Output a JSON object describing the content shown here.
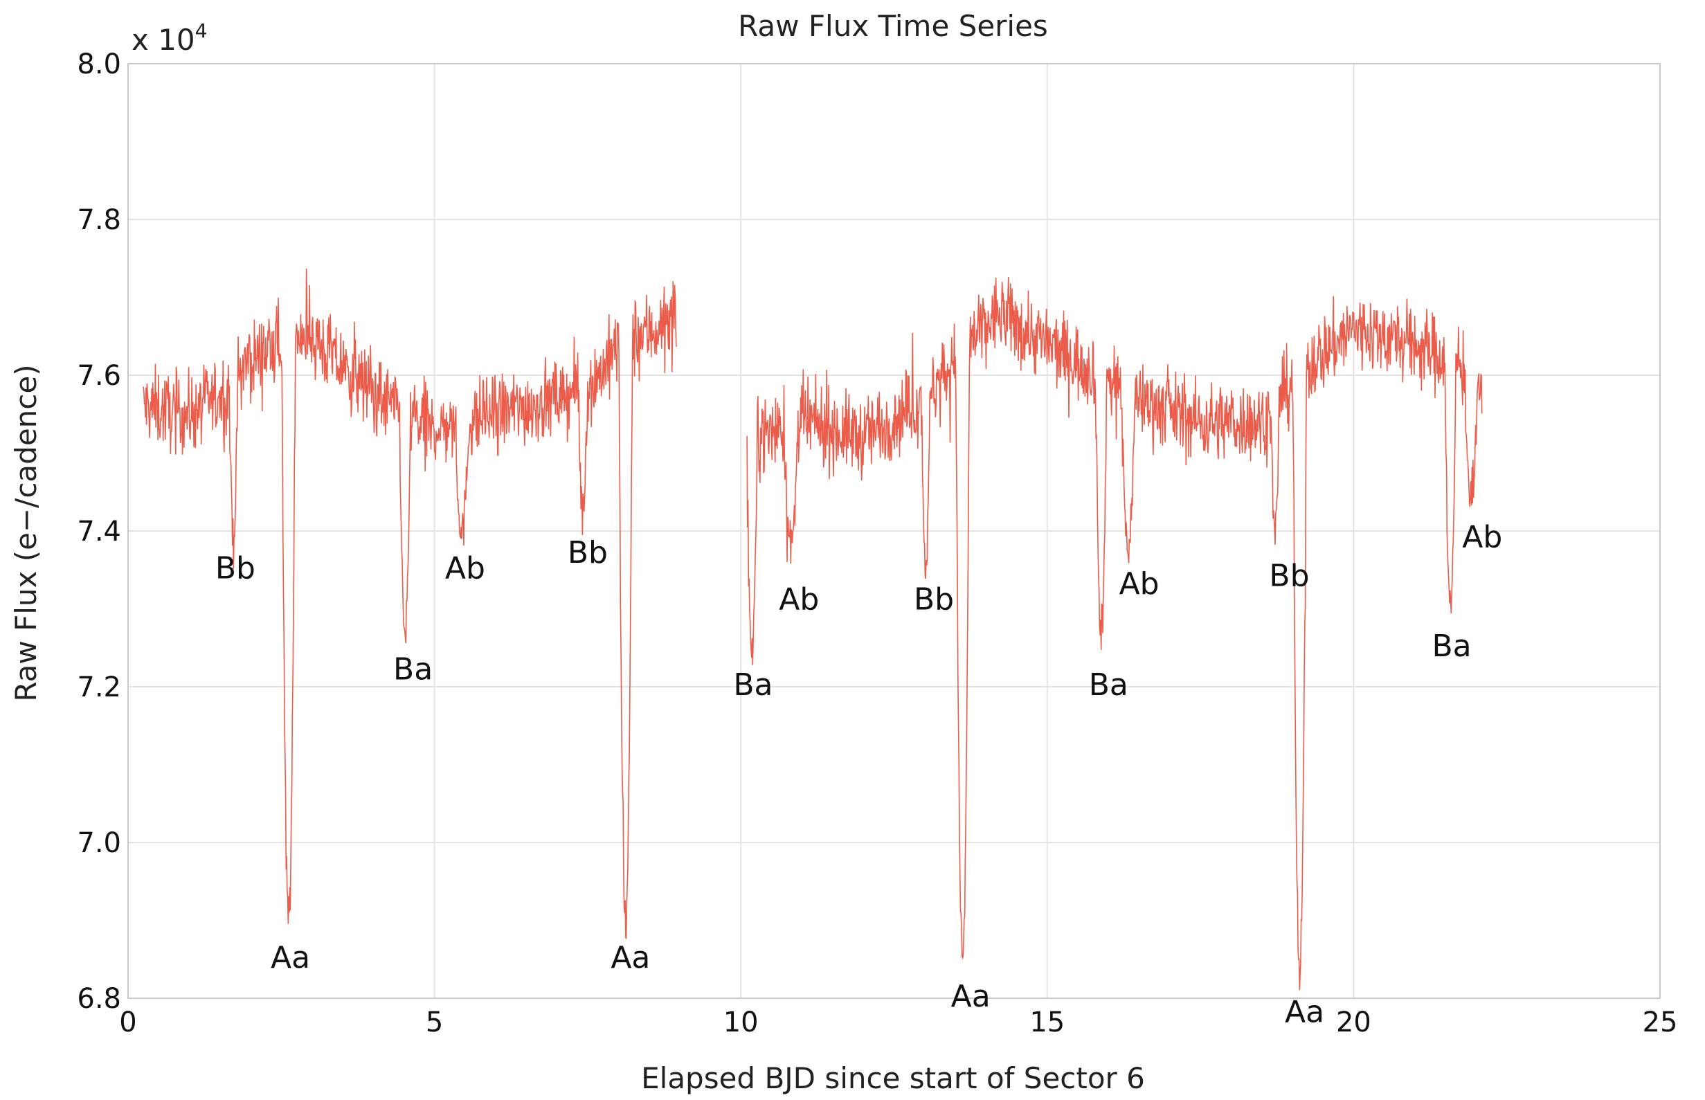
{
  "chart_data": {
    "type": "line",
    "title": "Raw Flux Time Series",
    "xlabel": "Elapsed BJD since start of Sector 6",
    "ylabel": "Raw Flux (e−/cadence)",
    "y_multiplier": "x 10",
    "y_multiplier_exponent": "4",
    "xlim": [
      0,
      25
    ],
    "ylim": [
      6.8,
      8.0
    ],
    "x_ticks": [
      {
        "value": 0,
        "label": "0"
      },
      {
        "value": 5,
        "label": "5"
      },
      {
        "value": 10,
        "label": "10"
      },
      {
        "value": 15,
        "label": "15"
      },
      {
        "value": 20,
        "label": "20"
      },
      {
        "value": 25,
        "label": "25"
      }
    ],
    "y_ticks": [
      {
        "value": 6.8,
        "label": "6.8"
      },
      {
        "value": 7.0,
        "label": "7.0"
      },
      {
        "value": 7.2,
        "label": "7.2"
      },
      {
        "value": 7.4,
        "label": "7.4"
      },
      {
        "value": 7.6,
        "label": "7.6"
      },
      {
        "value": 7.8,
        "label": "7.8"
      },
      {
        "value": 8.0,
        "label": "8.0"
      }
    ],
    "grid": true,
    "series_color": "#e8412a",
    "segments": [
      {
        "x_start": 0.25,
        "x_end": 8.95
      },
      {
        "x_start": 10.1,
        "x_end": 22.1
      }
    ],
    "baseline": [
      [
        0.25,
        7.56
      ],
      [
        1.0,
        7.55
      ],
      [
        1.6,
        7.58
      ],
      [
        2.0,
        7.62
      ],
      [
        2.5,
        7.64
      ],
      [
        2.85,
        7.66
      ],
      [
        3.5,
        7.61
      ],
      [
        4.3,
        7.56
      ],
      [
        5.0,
        7.53
      ],
      [
        6.0,
        7.55
      ],
      [
        7.0,
        7.57
      ],
      [
        7.6,
        7.59
      ],
      [
        8.0,
        7.64
      ],
      [
        8.95,
        7.67
      ],
      [
        10.1,
        7.52
      ],
      [
        11.0,
        7.54
      ],
      [
        12.0,
        7.52
      ],
      [
        13.0,
        7.57
      ],
      [
        13.5,
        7.62
      ],
      [
        14.2,
        7.68
      ],
      [
        15.0,
        7.64
      ],
      [
        15.9,
        7.6
      ],
      [
        16.5,
        7.57
      ],
      [
        17.5,
        7.54
      ],
      [
        18.5,
        7.54
      ],
      [
        19.2,
        7.61
      ],
      [
        20.0,
        7.66
      ],
      [
        21.0,
        7.64
      ],
      [
        21.6,
        7.62
      ],
      [
        22.1,
        7.59
      ]
    ],
    "scatter_amplitude": 0.05,
    "dips": [
      {
        "label": "Bb",
        "x": 1.72,
        "min": 7.39,
        "half_width": 0.07
      },
      {
        "label": "Aa",
        "x": 2.62,
        "min": 6.9,
        "half_width": 0.11
      },
      {
        "label": "Ba",
        "x": 4.52,
        "min": 7.27,
        "half_width": 0.09
      },
      {
        "label": "Ab",
        "x": 5.45,
        "min": 7.4,
        "half_width": 0.11
      },
      {
        "label": "Bb",
        "x": 7.42,
        "min": 7.42,
        "half_width": 0.07
      },
      {
        "label": "Aa",
        "x": 8.12,
        "min": 6.89,
        "half_width": 0.11
      },
      {
        "label": "Ba",
        "x": 10.18,
        "min": 7.25,
        "half_width": 0.09
      },
      {
        "label": "Ab",
        "x": 10.82,
        "min": 7.38,
        "half_width": 0.11
      },
      {
        "label": "Bb",
        "x": 13.02,
        "min": 7.36,
        "half_width": 0.07
      },
      {
        "label": "Aa",
        "x": 13.62,
        "min": 6.85,
        "half_width": 0.11
      },
      {
        "label": "Ba",
        "x": 15.88,
        "min": 7.27,
        "half_width": 0.09
      },
      {
        "label": "Ab",
        "x": 16.32,
        "min": 7.38,
        "half_width": 0.11
      },
      {
        "label": "Bb",
        "x": 18.72,
        "min": 7.4,
        "half_width": 0.07
      },
      {
        "label": "Aa",
        "x": 19.12,
        "min": 6.83,
        "half_width": 0.11
      },
      {
        "label": "Ba",
        "x": 21.58,
        "min": 7.3,
        "half_width": 0.09
      },
      {
        "label": "Ab",
        "x": 21.92,
        "min": 7.44,
        "half_width": 0.11
      }
    ],
    "annotations": [
      {
        "text": "Bb",
        "x": 1.75,
        "y": 7.35
      },
      {
        "text": "Aa",
        "x": 2.65,
        "y": 6.85
      },
      {
        "text": "Ba",
        "x": 4.65,
        "y": 7.22
      },
      {
        "text": "Ab",
        "x": 5.5,
        "y": 7.35
      },
      {
        "text": "Bb",
        "x": 7.5,
        "y": 7.37
      },
      {
        "text": "Aa",
        "x": 8.2,
        "y": 6.85
      },
      {
        "text": "Ba",
        "x": 10.2,
        "y": 7.2
      },
      {
        "text": "Ab",
        "x": 10.95,
        "y": 7.31
      },
      {
        "text": "Bb",
        "x": 13.15,
        "y": 7.31
      },
      {
        "text": "Aa",
        "x": 13.75,
        "y": 6.8
      },
      {
        "text": "Ba",
        "x": 16.0,
        "y": 7.2
      },
      {
        "text": "Ab",
        "x": 16.5,
        "y": 7.33
      },
      {
        "text": "Bb",
        "x": 18.95,
        "y": 7.34
      },
      {
        "text": "Aa",
        "x": 19.2,
        "y": 6.78
      },
      {
        "text": "Ba",
        "x": 21.6,
        "y": 7.25
      },
      {
        "text": "Ab",
        "x": 22.1,
        "y": 7.39
      }
    ]
  }
}
